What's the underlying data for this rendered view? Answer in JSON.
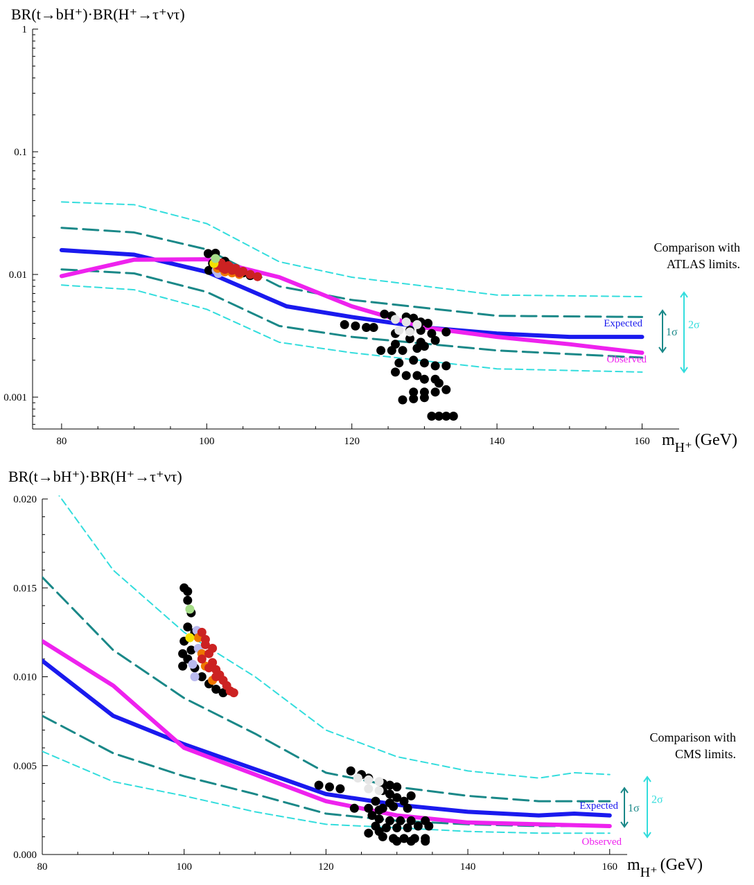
{
  "chart_data": [
    {
      "type": "line",
      "ylabel": "BR(t→bH⁺)·BR(H⁺→τ⁺ντ)",
      "xlabel": "m_H⁺ (GeV)",
      "xlabel_main": "m",
      "xlabel_sub": "H⁺",
      "xlabel_unit": "(GeV)",
      "yscale": "log",
      "xlim": [
        76,
        161
      ],
      "ylim": [
        0.00055,
        1.0
      ],
      "xticks": [
        80,
        100,
        120,
        140,
        160
      ],
      "yticks": [
        1,
        0.1,
        0.01,
        0.001
      ],
      "ytick_labels": [
        "1",
        "0.1",
        "0.01",
        "0.001"
      ],
      "annotation": [
        "Comparison with",
        "ATLAS limits."
      ],
      "band_labels": {
        "one_sigma": "1σ",
        "two_sigma": "2σ"
      },
      "series": [
        {
          "name": "Expected",
          "role": "expected",
          "color": "#1a1aee",
          "x": [
            80,
            90,
            100,
            111,
            120,
            130,
            140,
            150,
            160
          ],
          "y": [
            0.0158,
            0.0145,
            0.0105,
            0.0055,
            0.0045,
            0.0037,
            0.0033,
            0.0031,
            0.0031
          ]
        },
        {
          "name": "Observed",
          "role": "observed",
          "color": "#ee22ee",
          "x": [
            80,
            90,
            100,
            110,
            120,
            130,
            140,
            150,
            160
          ],
          "y": [
            0.0097,
            0.0132,
            0.0133,
            0.0095,
            0.0055,
            0.0037,
            0.0031,
            0.0027,
            0.0023
          ]
        },
        {
          "role": "plus1sigma",
          "color": "#1a8888",
          "x": [
            80,
            90,
            100,
            110,
            120,
            140,
            160
          ],
          "y": [
            0.024,
            0.022,
            0.016,
            0.008,
            0.0062,
            0.0046,
            0.0045
          ]
        },
        {
          "role": "minus1sigma",
          "color": "#1a8888",
          "x": [
            80,
            90,
            100,
            110,
            120,
            140,
            160
          ],
          "y": [
            0.011,
            0.0102,
            0.0072,
            0.0038,
            0.0031,
            0.0024,
            0.0021
          ]
        },
        {
          "role": "plus2sigma",
          "color": "#33dddd",
          "x": [
            80,
            90,
            100,
            110,
            120,
            140,
            160
          ],
          "y": [
            0.039,
            0.037,
            0.026,
            0.0127,
            0.0095,
            0.0068,
            0.0066
          ]
        },
        {
          "role": "minus2sigma",
          "color": "#33dddd",
          "x": [
            80,
            90,
            100,
            110,
            120,
            140,
            160
          ],
          "y": [
            0.0082,
            0.0075,
            0.0052,
            0.0028,
            0.0023,
            0.0017,
            0.0016
          ]
        }
      ],
      "scan_points": {
        "black": [
          [
            100.2,
            0.0148
          ],
          [
            101.2,
            0.0149
          ],
          [
            100.8,
            0.0123
          ],
          [
            101.5,
            0.0113
          ],
          [
            100.3,
            0.0108
          ],
          [
            102.5,
            0.0128
          ],
          [
            103.5,
            0.011
          ],
          [
            105,
            0.0103
          ],
          [
            106,
            0.0098
          ],
          [
            127.5,
            0.0045
          ],
          [
            128.5,
            0.0044
          ],
          [
            129.5,
            0.0041
          ],
          [
            130.5,
            0.004
          ],
          [
            126,
            0.0033
          ],
          [
            128,
            0.0035
          ],
          [
            129.5,
            0.0035
          ],
          [
            131,
            0.0033
          ],
          [
            126,
            0.0027
          ],
          [
            128,
            0.003
          ],
          [
            129.5,
            0.0028
          ],
          [
            131.5,
            0.0029
          ],
          [
            133,
            0.0034
          ],
          [
            124,
            0.0024
          ],
          [
            125.5,
            0.0024
          ],
          [
            127,
            0.0024
          ],
          [
            129,
            0.0025
          ],
          [
            130,
            0.0026
          ],
          [
            126.5,
            0.0019
          ],
          [
            128.5,
            0.002
          ],
          [
            130,
            0.0019
          ],
          [
            131.5,
            0.0018
          ],
          [
            133,
            0.0018
          ],
          [
            126,
            0.0016
          ],
          [
            127.5,
            0.0015
          ],
          [
            129,
            0.0015
          ],
          [
            130,
            0.0014
          ],
          [
            131.5,
            0.0014
          ],
          [
            132,
            0.0013
          ],
          [
            128.5,
            0.0011
          ],
          [
            130,
            0.0011
          ],
          [
            131.5,
            0.0011
          ],
          [
            133,
            0.00115
          ],
          [
            127,
            0.00095
          ],
          [
            128.5,
            0.00097
          ],
          [
            130,
            0.00099
          ],
          [
            131,
            0.0007
          ],
          [
            132,
            0.0007
          ],
          [
            133,
            0.0007
          ],
          [
            134,
            0.0007
          ],
          [
            119,
            0.0039
          ],
          [
            120.5,
            0.0038
          ],
          [
            122,
            0.0037
          ],
          [
            123,
            0.0037
          ],
          [
            124.5,
            0.00475
          ],
          [
            125.5,
            0.0046
          ]
        ],
        "red": [
          [
            102,
            0.0124
          ],
          [
            103,
            0.0118
          ],
          [
            104,
            0.0112
          ],
          [
            105,
            0.0106
          ],
          [
            106,
            0.01
          ],
          [
            107,
            0.0096
          ],
          [
            102.5,
            0.011
          ],
          [
            103.5,
            0.0108
          ],
          [
            104.5,
            0.0103
          ],
          [
            101.5,
            0.0119
          ],
          [
            102.2,
            0.0113
          ],
          [
            103.2,
            0.0115
          ]
        ],
        "orange": [
          [
            101.5,
            0.0112
          ],
          [
            102.5,
            0.0105
          ],
          [
            103.5,
            0.0103
          ],
          [
            104.5,
            0.01
          ]
        ],
        "lavender": [
          [
            101.3,
            0.0108
          ],
          [
            101.6,
            0.0102
          ]
        ],
        "yellow": [
          [
            101,
            0.0123
          ]
        ],
        "green": [
          [
            101.2,
            0.0135
          ]
        ],
        "white": [
          [
            126,
            0.0043
          ],
          [
            127.5,
            0.0041
          ],
          [
            129,
            0.0039
          ],
          [
            126.5,
            0.0035
          ],
          [
            128,
            0.0034
          ]
        ]
      }
    },
    {
      "type": "line",
      "ylabel": "BR(t→bH⁺)·BR(H⁺→τ⁺ντ)",
      "xlabel": "m_H⁺ (GeV)",
      "xlabel_main": "m",
      "xlabel_sub": "H⁺",
      "xlabel_unit": "(GeV)",
      "yscale": "linear",
      "xlim": [
        80,
        161
      ],
      "ylim": [
        0.0,
        0.02
      ],
      "xticks": [
        80,
        100,
        120,
        140,
        160
      ],
      "yticks": [
        0.0,
        0.005,
        0.01,
        0.015,
        0.02
      ],
      "ytick_labels": [
        "0.000",
        "0.005",
        "0.010",
        "0.015",
        "0.020"
      ],
      "annotation": [
        "Comparison with",
        "CMS limits."
      ],
      "band_labels": {
        "one_sigma": "1σ",
        "two_sigma": "2σ"
      },
      "series": [
        {
          "name": "Expected",
          "role": "expected",
          "color": "#1a1aee",
          "x": [
            80,
            90,
            100,
            110,
            120,
            130,
            140,
            150,
            155,
            160
          ],
          "y": [
            0.0109,
            0.0078,
            0.0062,
            0.0048,
            0.0034,
            0.0028,
            0.0024,
            0.0022,
            0.0023,
            0.0022
          ]
        },
        {
          "name": "Observed",
          "role": "observed",
          "color": "#ee22ee",
          "x": [
            80,
            90,
            100,
            110,
            120,
            130,
            140,
            150,
            160
          ],
          "y": [
            0.012,
            0.0095,
            0.006,
            0.0045,
            0.003,
            0.0022,
            0.0018,
            0.0017,
            0.0016
          ]
        },
        {
          "role": "plus1sigma",
          "color": "#1a8888",
          "x": [
            80,
            90,
            100,
            110,
            120,
            130,
            140,
            150,
            160
          ],
          "y": [
            0.0156,
            0.0115,
            0.0088,
            0.0068,
            0.0046,
            0.0038,
            0.0033,
            0.003,
            0.003
          ]
        },
        {
          "role": "minus1sigma",
          "color": "#1a8888",
          "x": [
            80,
            90,
            100,
            110,
            120,
            130,
            140,
            150,
            160
          ],
          "y": [
            0.0078,
            0.0057,
            0.0044,
            0.0034,
            0.0023,
            0.0019,
            0.0017,
            0.0016,
            0.0016
          ]
        },
        {
          "role": "plus2sigma",
          "color": "#33dddd",
          "x": [
            80,
            90,
            100,
            110,
            120,
            130,
            140,
            150,
            155,
            160
          ],
          "y": [
            0.0215,
            0.016,
            0.0125,
            0.01,
            0.007,
            0.0055,
            0.0047,
            0.0043,
            0.0046,
            0.0045
          ]
        },
        {
          "role": "minus2sigma",
          "color": "#33dddd",
          "x": [
            80,
            90,
            100,
            110,
            120,
            130,
            140,
            150,
            160
          ],
          "y": [
            0.0058,
            0.0041,
            0.0033,
            0.0024,
            0.0017,
            0.0015,
            0.0013,
            0.0012,
            0.0012
          ]
        }
      ],
      "scan_points": {
        "black": [
          [
            100,
            0.015
          ],
          [
            100.5,
            0.0148
          ],
          [
            100.5,
            0.0143
          ],
          [
            101,
            0.0136
          ],
          [
            100.5,
            0.0128
          ],
          [
            100,
            0.012
          ],
          [
            99.8,
            0.0113
          ],
          [
            99.8,
            0.0106
          ],
          [
            100.5,
            0.011
          ],
          [
            101,
            0.0115
          ],
          [
            101.5,
            0.0125
          ],
          [
            101.5,
            0.0105
          ],
          [
            102.5,
            0.01
          ],
          [
            103.5,
            0.0096
          ],
          [
            104.5,
            0.0093
          ],
          [
            105.5,
            0.0091
          ],
          [
            123.5,
            0.0047
          ],
          [
            125,
            0.0045
          ],
          [
            126,
            0.0043
          ],
          [
            128,
            0.004
          ],
          [
            129,
            0.0039
          ],
          [
            130,
            0.0038
          ],
          [
            119,
            0.0039
          ],
          [
            120.5,
            0.0038
          ],
          [
            122,
            0.0037
          ],
          [
            128,
            0.0036
          ],
          [
            129,
            0.0034
          ],
          [
            130,
            0.0032
          ],
          [
            127,
            0.003
          ],
          [
            129,
            0.0029
          ],
          [
            131,
            0.003
          ],
          [
            132,
            0.0033
          ],
          [
            128,
            0.0026
          ],
          [
            129.5,
            0.0027
          ],
          [
            131.5,
            0.0026
          ],
          [
            124,
            0.0026
          ],
          [
            126,
            0.0026
          ],
          [
            127.5,
            0.0025
          ],
          [
            126.5,
            0.0022
          ],
          [
            127.5,
            0.002
          ],
          [
            129,
            0.0019
          ],
          [
            130.5,
            0.0019
          ],
          [
            132,
            0.0019
          ],
          [
            134,
            0.0019
          ],
          [
            127,
            0.0016
          ],
          [
            128.5,
            0.0015
          ],
          [
            130,
            0.0015
          ],
          [
            131.5,
            0.0015
          ],
          [
            133,
            0.0016
          ],
          [
            134.5,
            0.0016
          ],
          [
            128,
            0.001
          ],
          [
            129.5,
            0.0009
          ],
          [
            131,
            0.0009
          ],
          [
            132.5,
            0.0009
          ],
          [
            134,
            0.0009
          ],
          [
            126,
            0.0012
          ],
          [
            127.5,
            0.0013
          ],
          [
            130,
            0.00075
          ],
          [
            132,
            0.00075
          ],
          [
            134,
            0.00075
          ]
        ],
        "red": [
          [
            102.5,
            0.0125
          ],
          [
            103,
            0.0118
          ],
          [
            103.5,
            0.0113
          ],
          [
            104,
            0.0108
          ],
          [
            104.5,
            0.0104
          ],
          [
            105,
            0.0101
          ],
          [
            105.5,
            0.0098
          ],
          [
            106,
            0.0095
          ],
          [
            106.5,
            0.0092
          ],
          [
            107,
            0.0091
          ],
          [
            102.5,
            0.011
          ],
          [
            103.5,
            0.0105
          ],
          [
            104.5,
            0.01
          ],
          [
            103,
            0.0121
          ],
          [
            104,
            0.0116
          ]
        ],
        "orange": [
          [
            102,
            0.0122
          ],
          [
            102.5,
            0.0113
          ],
          [
            103,
            0.0106
          ],
          [
            104,
            0.0098
          ]
        ],
        "lavender": [
          [
            101.2,
            0.0107
          ],
          [
            101.5,
            0.01
          ],
          [
            102,
            0.0116
          ],
          [
            101.8,
            0.0126
          ]
        ],
        "yellow": [
          [
            100.8,
            0.0122
          ]
        ],
        "green": [
          [
            100.8,
            0.0138
          ]
        ],
        "white": [
          [
            124.5,
            0.0043
          ],
          [
            126,
            0.0042
          ],
          [
            127.5,
            0.0041
          ],
          [
            126,
            0.0037
          ],
          [
            127.5,
            0.0036
          ]
        ]
      }
    }
  ]
}
